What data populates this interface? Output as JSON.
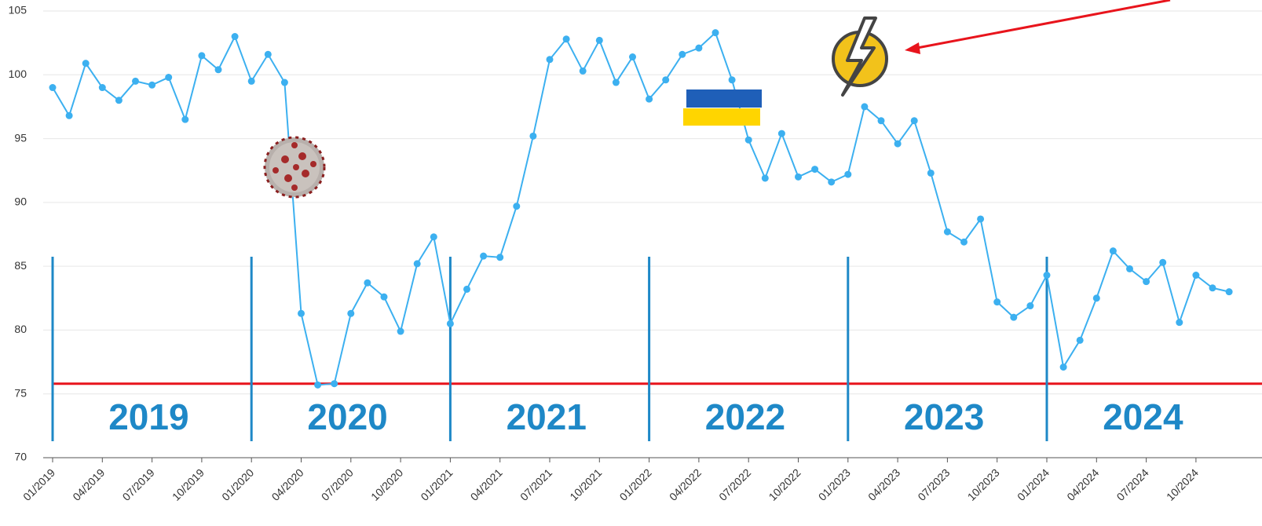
{
  "chart_data": {
    "type": "line",
    "categories": [
      "01/2019",
      null,
      null,
      "04/2019",
      null,
      null,
      "07/2019",
      null,
      null,
      "10/2019",
      null,
      null,
      "01/2020",
      null,
      null,
      "04/2020",
      null,
      null,
      "07/2020",
      null,
      null,
      "10/2020",
      null,
      null,
      "01/2021",
      null,
      null,
      "04/2021",
      null,
      null,
      "07/2021",
      null,
      null,
      "10/2021",
      null,
      null,
      "01/2022",
      null,
      null,
      "04/2022",
      null,
      null,
      "07/2022",
      null,
      null,
      "10/2022",
      null,
      null,
      "01/2023",
      null,
      null,
      "04/2023",
      null,
      null,
      "07/2023",
      null,
      null,
      "10/2023",
      null,
      null,
      "01/2024",
      null,
      null,
      "04/2024",
      null,
      null,
      "07/2024",
      null,
      null,
      "10/2024",
      null,
      null
    ],
    "series": [
      {
        "color": "#3cb0f0",
        "values": [
          99.0,
          96.8,
          100.9,
          99.0,
          98.0,
          99.5,
          99.2,
          99.8,
          96.5,
          101.5,
          100.4,
          103.0,
          99.5,
          101.6,
          99.4,
          81.3,
          75.7,
          75.8,
          81.3,
          83.7,
          82.6,
          79.9,
          85.2,
          87.3,
          80.5,
          83.2,
          85.8,
          85.7,
          89.7,
          95.2,
          101.2,
          102.8,
          100.3,
          102.7,
          99.4,
          101.4,
          98.1,
          99.6,
          101.6,
          102.1,
          103.3,
          99.6,
          94.9,
          91.9,
          95.4,
          92.0,
          92.6,
          91.6,
          92.2,
          97.5,
          96.4,
          94.6,
          96.4,
          92.3,
          87.7,
          86.9,
          88.7,
          82.2,
          81.0,
          81.9,
          84.3,
          77.1,
          79.2,
          82.5,
          86.2,
          84.8,
          83.8,
          85.3,
          80.6,
          84.3,
          83.3,
          83.0
        ]
      }
    ],
    "reference_line": {
      "value": 75.8,
      "color": "#e8141c"
    },
    "year_labels": [
      "2019",
      "2020",
      "2021",
      "2022",
      "2023",
      "2024"
    ],
    "year_color": "#1e88c7",
    "ylim": [
      70,
      105
    ],
    "yticks": [
      70,
      75,
      80,
      85,
      90,
      95,
      100,
      105
    ],
    "grid": true
  }
}
